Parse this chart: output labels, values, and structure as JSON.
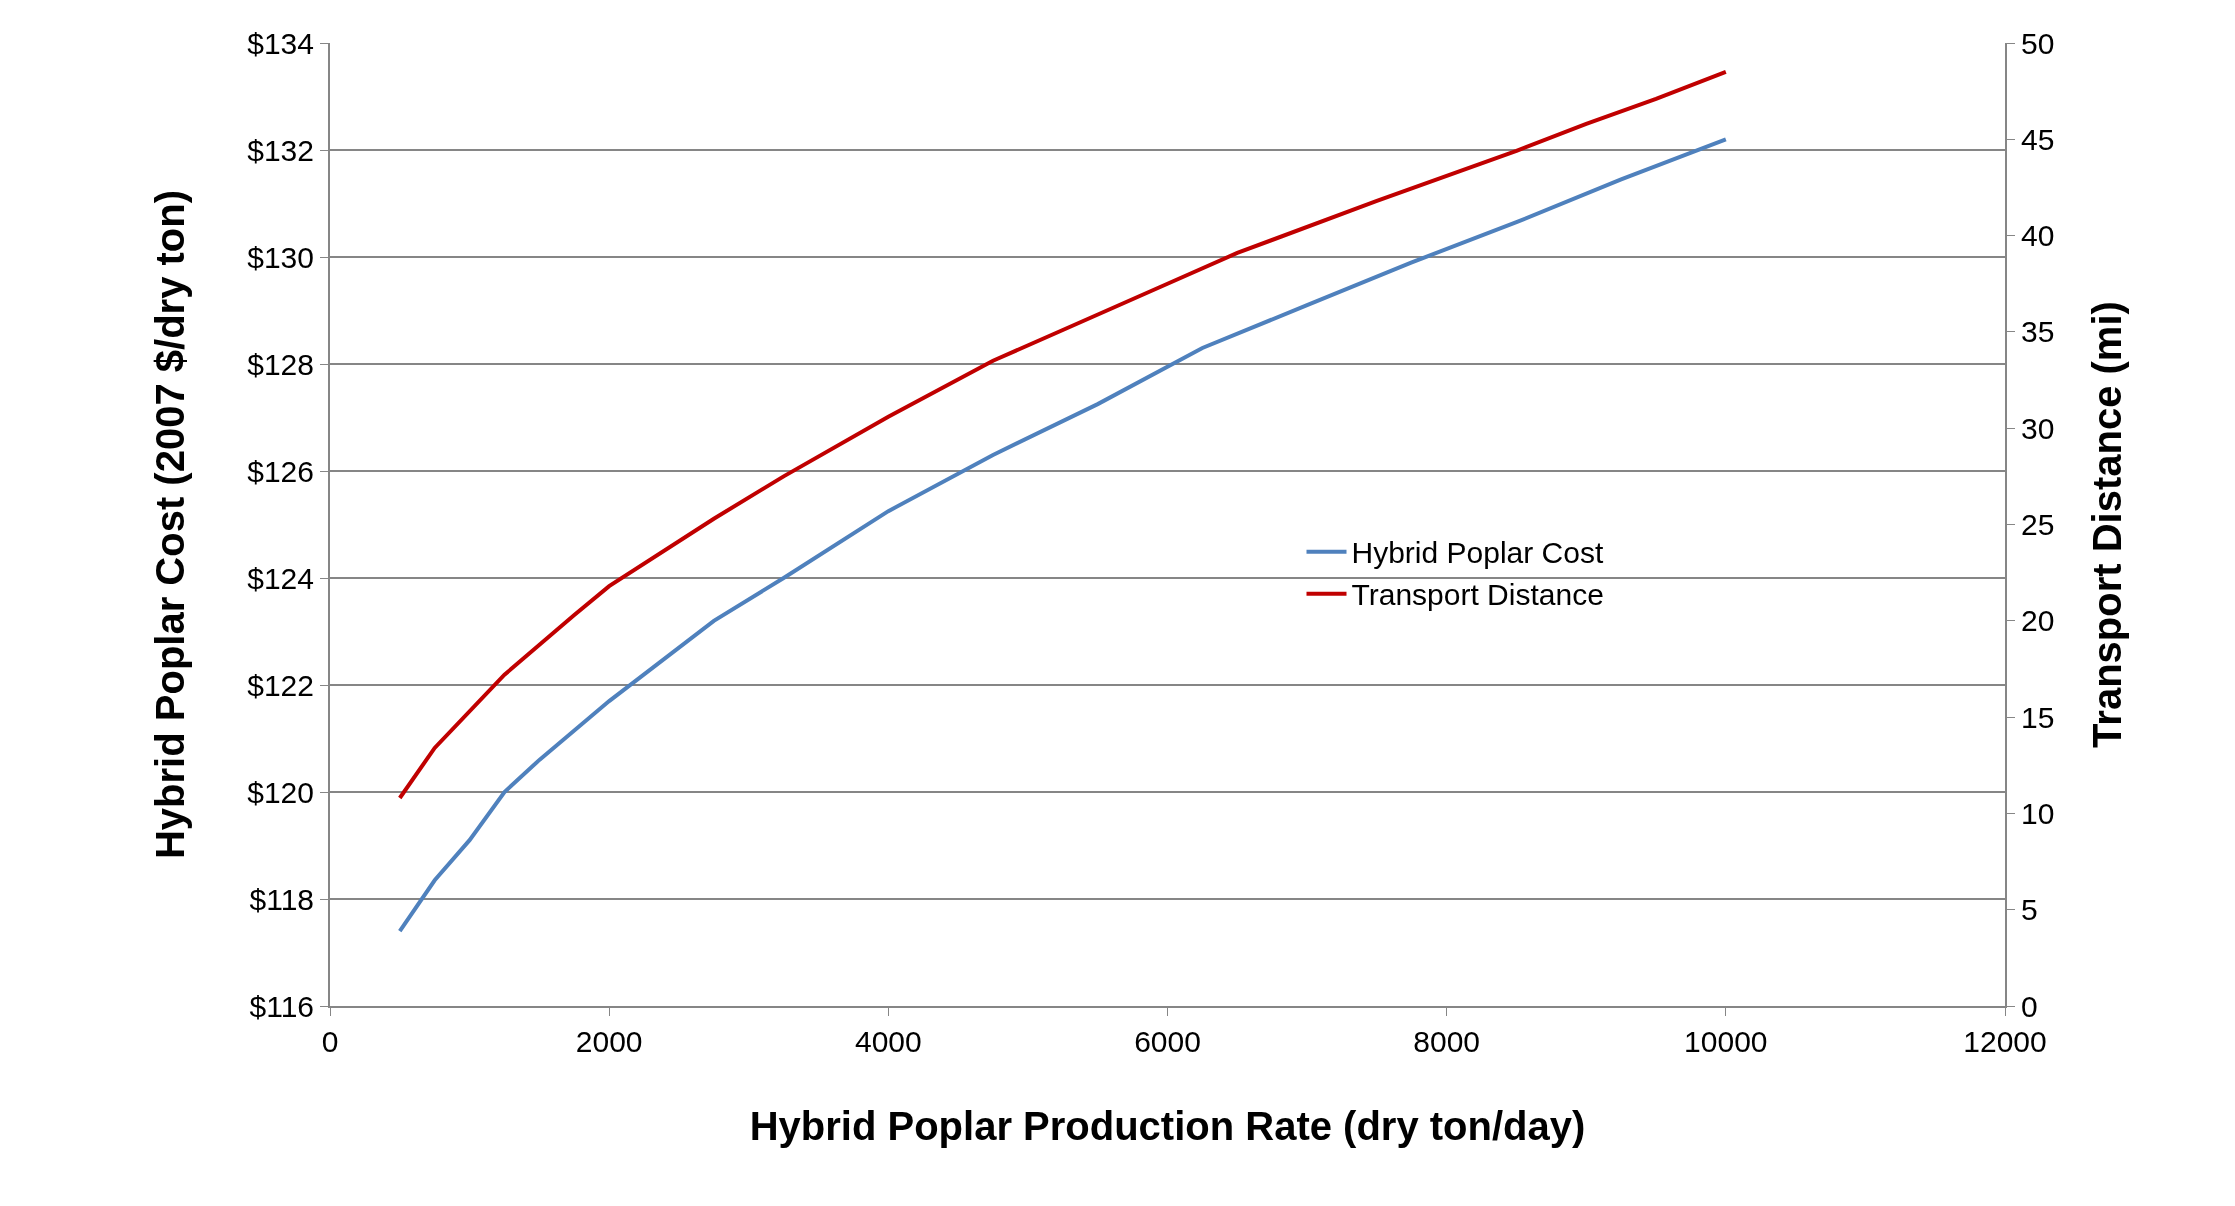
{
  "chart_data": {
    "type": "line",
    "xlabel": "Hybrid Poplar Production Rate (dry ton/day)",
    "ylabel": "Hybrid Poplar Cost (2007 $/dry ton)",
    "y2label": "Transport Distance (mi)",
    "series": [
      {
        "name": "Hybrid Poplar Cost",
        "color": "#4f81bd",
        "x": [
          500,
          750,
          1000,
          1250,
          1500,
          2000,
          2250,
          2750,
          3250,
          4000,
          4750,
          5500,
          6250,
          7000,
          7750,
          8500,
          9250,
          10000
        ],
        "values": [
          117.4,
          118.35,
          119.1,
          120.0,
          120.6,
          121.7,
          122.2,
          123.2,
          124.0,
          125.25,
          126.3,
          127.25,
          128.3,
          129.1,
          129.9,
          130.65,
          131.45,
          132.2
        ]
      },
      {
        "name": "Transport Distance",
        "color": "#c00000",
        "axis": "y2",
        "x": [
          500,
          750,
          1250,
          1750,
          2000,
          2750,
          3250,
          4000,
          4750,
          5250,
          6000,
          6500,
          7500,
          8500,
          9000,
          9500,
          10000
        ],
        "values": [
          10.8,
          13.4,
          17.2,
          20.3,
          21.8,
          25.3,
          27.5,
          30.6,
          33.5,
          35.1,
          37.5,
          39.1,
          41.8,
          44.4,
          45.8,
          47.1,
          48.5
        ]
      }
    ],
    "xlim": [
      0,
      12000
    ],
    "xticks": [
      0,
      2000,
      4000,
      6000,
      8000,
      10000,
      12000
    ],
    "ylim": [
      116,
      134
    ],
    "yticks": [
      {
        "value": 116,
        "label": "$116"
      },
      {
        "value": 118,
        "label": "$118"
      },
      {
        "value": 120,
        "label": "$120"
      },
      {
        "value": 122,
        "label": "$122"
      },
      {
        "value": 124,
        "label": "$124"
      },
      {
        "value": 126,
        "label": "$126"
      },
      {
        "value": 128,
        "label": "$128"
      },
      {
        "value": 130,
        "label": "$130"
      },
      {
        "value": 132,
        "label": "$132"
      },
      {
        "value": 134,
        "label": "$134"
      }
    ],
    "y2lim": [
      0,
      50
    ],
    "y2ticks": [
      0,
      5,
      10,
      15,
      20,
      25,
      30,
      35,
      40,
      45,
      50
    ],
    "grid": "y",
    "legend": "right",
    "marker": "none",
    "line_style": "solid"
  }
}
